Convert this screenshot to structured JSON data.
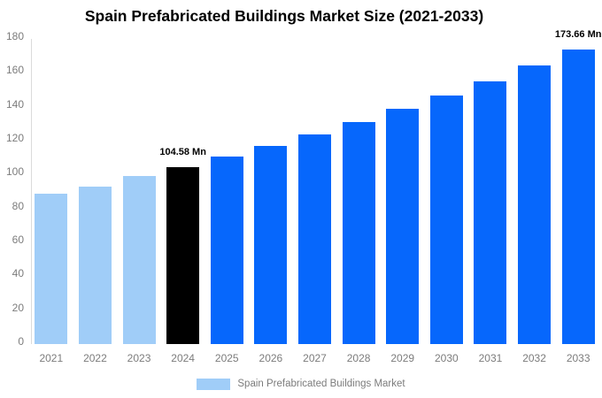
{
  "chart_data": {
    "type": "bar",
    "title": "Spain Prefabricated Buildings Market Size (2021-2033)",
    "categories": [
      "2021",
      "2022",
      "2023",
      "2024",
      "2025",
      "2026",
      "2027",
      "2028",
      "2029",
      "2030",
      "2031",
      "2032",
      "2033"
    ],
    "values": [
      88.5,
      93.0,
      99.0,
      104.58,
      110.6,
      117.1,
      123.9,
      131.0,
      138.6,
      146.7,
      155.2,
      164.2,
      173.66
    ],
    "unit": "Mn",
    "ylim": [
      0,
      180
    ],
    "yticks": [
      0,
      20,
      40,
      60,
      80,
      100,
      120,
      140,
      160,
      180
    ],
    "grid": false,
    "legend_position": "bottom",
    "bar_colors": [
      "#A0CDF8",
      "#A0CDF8",
      "#A0CDF8",
      "#000000",
      "#0667FC",
      "#0667FC",
      "#0667FC",
      "#0667FC",
      "#0667FC",
      "#0667FC",
      "#0667FC",
      "#0667FC",
      "#0667FC"
    ],
    "annotations": [
      {
        "category": "2024",
        "index": 3,
        "text": "104.58 Mn"
      },
      {
        "category": "2033",
        "index": 12,
        "text": "173.66 Mn"
      }
    ]
  },
  "legend": {
    "label": "Spain Prefabricated Buildings Market",
    "swatch_color": "#A0CDF8"
  },
  "colors": {
    "background": "#FFFFFF",
    "axis_line": "#DBDBDB",
    "tick_text": "#7C7C7C",
    "title_text": "#000000",
    "annotation_text": "#000000",
    "past_bar": "#A0CDF8",
    "current_bar": "#000000",
    "forecast_bar": "#0667FC"
  }
}
